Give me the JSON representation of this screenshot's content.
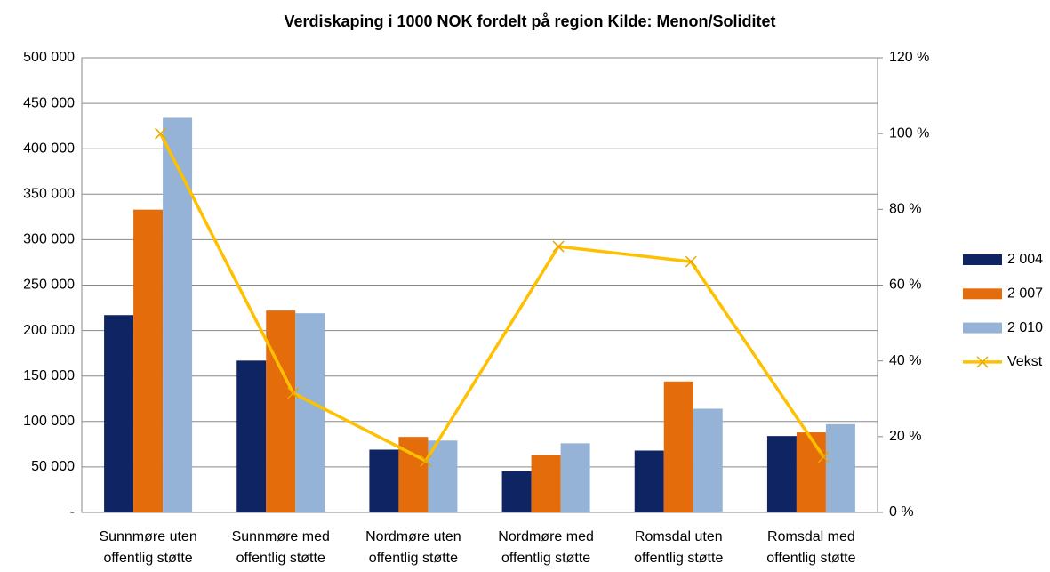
{
  "chart_data": {
    "type": "bar_line",
    "title": "Verdiskaping i 1000 NOK fordelt på region Kilde: Menon/Soliditet",
    "categories": [
      "Sunnmøre uten offentlig støtte",
      "Sunnmøre med offentlig støtte",
      "Nordmøre uten offentlig støtte",
      "Nordmøre med offentlig støtte",
      "Romsdal uten offentlig støtte",
      "Romsdal med offentlig støtte"
    ],
    "series": [
      {
        "name": "2 004",
        "type": "bar",
        "color": "#0f2462",
        "values": [
          217000,
          167000,
          69000,
          45000,
          68000,
          84000
        ]
      },
      {
        "name": "2 007",
        "type": "bar",
        "color": "#e46c0a",
        "values": [
          333000,
          222000,
          83000,
          63000,
          144000,
          88000
        ]
      },
      {
        "name": "2 010",
        "type": "bar",
        "color": "#95b3d7",
        "values": [
          434000,
          219000,
          79000,
          76000,
          114000,
          97000
        ]
      },
      {
        "name": "Vekst",
        "type": "line",
        "axis": "y2",
        "color": "#ffc000",
        "values": [
          100,
          31.5,
          13.6,
          70.2,
          66.2,
          14.6
        ]
      }
    ],
    "ylim": [
      0,
      500000
    ],
    "yticks": [
      {
        "value": 0,
        "label": "-"
      },
      {
        "value": 50000,
        "label": "50 000"
      },
      {
        "value": 100000,
        "label": "100 000"
      },
      {
        "value": 150000,
        "label": "150 000"
      },
      {
        "value": 200000,
        "label": "200 000"
      },
      {
        "value": 250000,
        "label": "250 000"
      },
      {
        "value": 300000,
        "label": "300 000"
      },
      {
        "value": 350000,
        "label": "350 000"
      },
      {
        "value": 400000,
        "label": "400 000"
      },
      {
        "value": 450000,
        "label": "450 000"
      },
      {
        "value": 500000,
        "label": "500 000"
      }
    ],
    "y2lim": [
      0,
      120
    ],
    "y2ticks": [
      {
        "value": 0,
        "label": "0 %"
      },
      {
        "value": 20,
        "label": "20 %"
      },
      {
        "value": 40,
        "label": "40 %"
      },
      {
        "value": 60,
        "label": "60 %"
      },
      {
        "value": 80,
        "label": "80 %"
      },
      {
        "value": 100,
        "label": "100 %"
      },
      {
        "value": 120,
        "label": "120 %"
      }
    ],
    "grid": true,
    "legend": "right"
  }
}
